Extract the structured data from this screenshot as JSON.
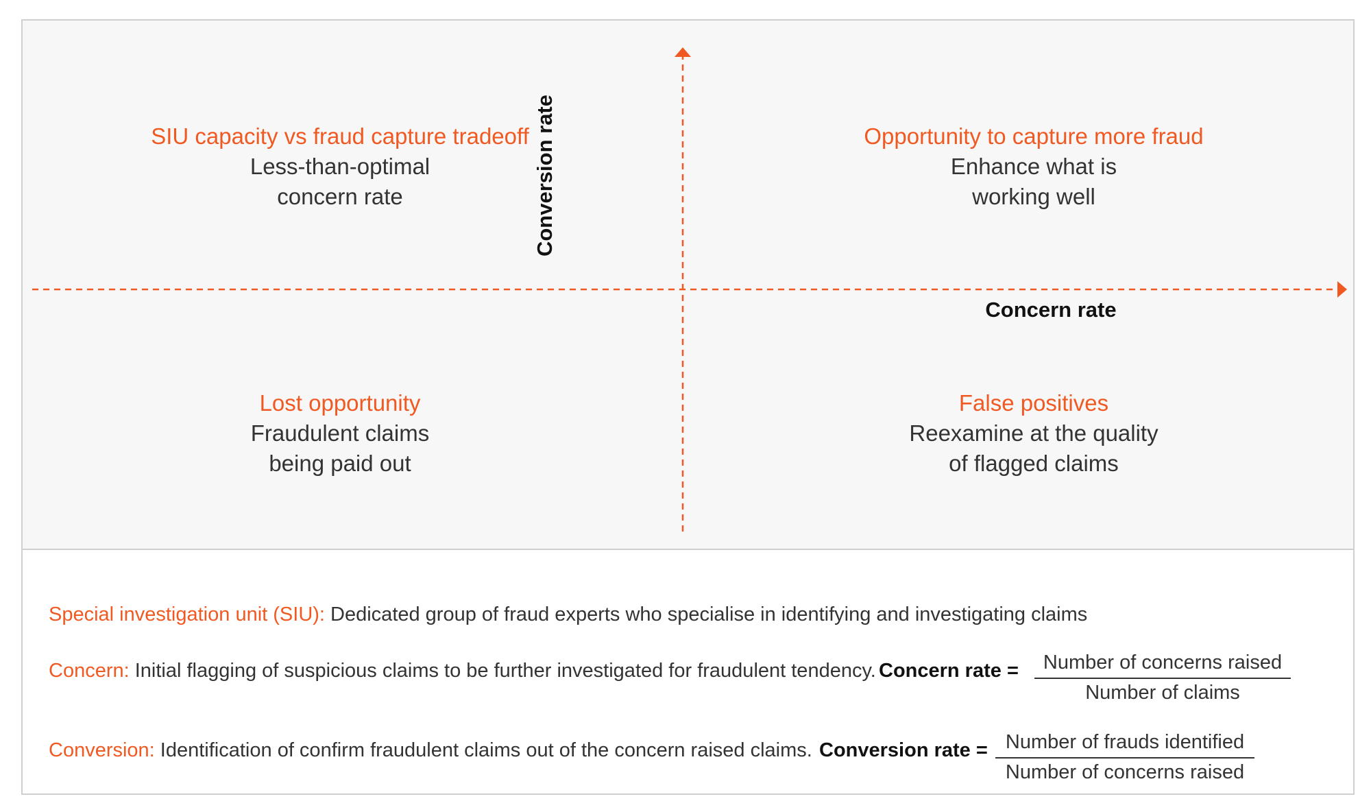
{
  "colors": {
    "accent": "#f05a22",
    "panel_bg": "#f7f7f7",
    "border": "#cfcfcf",
    "text": "#333333"
  },
  "axes": {
    "x_label": "Concern rate",
    "y_label": "Conversion rate"
  },
  "quadrants": {
    "top_left": {
      "title": "SIU capacity vs fraud capture tradeoff",
      "line1": "Less-than-optimal",
      "line2": "concern rate"
    },
    "top_right": {
      "title": "Opportunity to capture more fraud",
      "line1": "Enhance what is",
      "line2": "working well"
    },
    "bottom_left": {
      "title": "Lost opportunity",
      "line1": "Fraudulent claims",
      "line2": "being paid out"
    },
    "bottom_right": {
      "title": "False positives",
      "line1": "Reexamine at the quality",
      "line2": "of flagged claims"
    }
  },
  "definitions": {
    "siu": {
      "term": "Special investigation unit (SIU):",
      "text": " Dedicated group of fraud experts who specialise in identifying and investigating claims"
    },
    "concern": {
      "term": "Concern:",
      "text": " Initial flagging of suspicious claims to be further investigated for fraudulent tendency.",
      "formula_label": "Concern rate =",
      "numerator": "Number of concerns raised",
      "denominator": "Number of claims"
    },
    "conversion": {
      "term": "Conversion:",
      "text": " Identification of confirm fraudulent claims out of the concern raised claims.",
      "formula_label": "Conversion rate =",
      "numerator": "Number of frauds identified",
      "denominator": "Number of concerns raised"
    }
  }
}
